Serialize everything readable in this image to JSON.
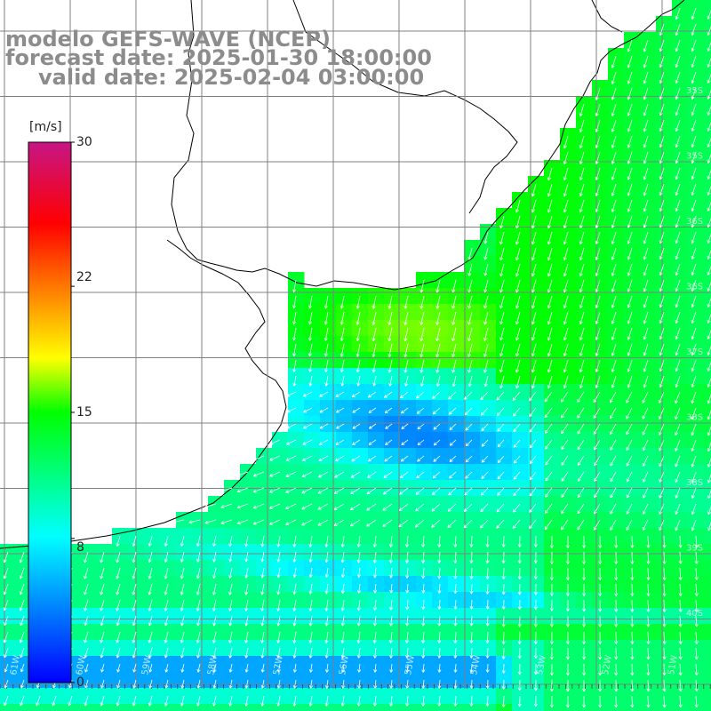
{
  "title": {
    "model": "modelo GEFS-WAVE (NCEP)",
    "forecast": "forecast date: 2025-01-30 18:00:00",
    "valid": "valid date: 2025-02-04 03:00:00"
  },
  "colorbar": {
    "unit": "[m/s]",
    "ticks": [
      "30",
      "22",
      "15",
      "8",
      "0"
    ],
    "tick_values": [
      30,
      22,
      15,
      8,
      0
    ],
    "range": [
      0,
      30
    ],
    "stops": [
      "#0000ff",
      "#00ffff",
      "#00ff00",
      "#ffff00",
      "#ff0000",
      "#c71585"
    ]
  },
  "map": {
    "lon_labels": [
      "61W",
      "60W",
      "59W",
      "58W",
      "57W",
      "56W",
      "55W",
      "54W",
      "53W",
      "52W",
      "51W"
    ],
    "lat_labels": [
      "35S",
      "35S",
      "36S",
      "36S",
      "37S",
      "38S",
      "38S",
      "39S",
      "40S"
    ],
    "land_color": "#ffffff",
    "coast_color": "#000000",
    "grid_color": "#808080",
    "vector_color": "#ffffff"
  }
}
